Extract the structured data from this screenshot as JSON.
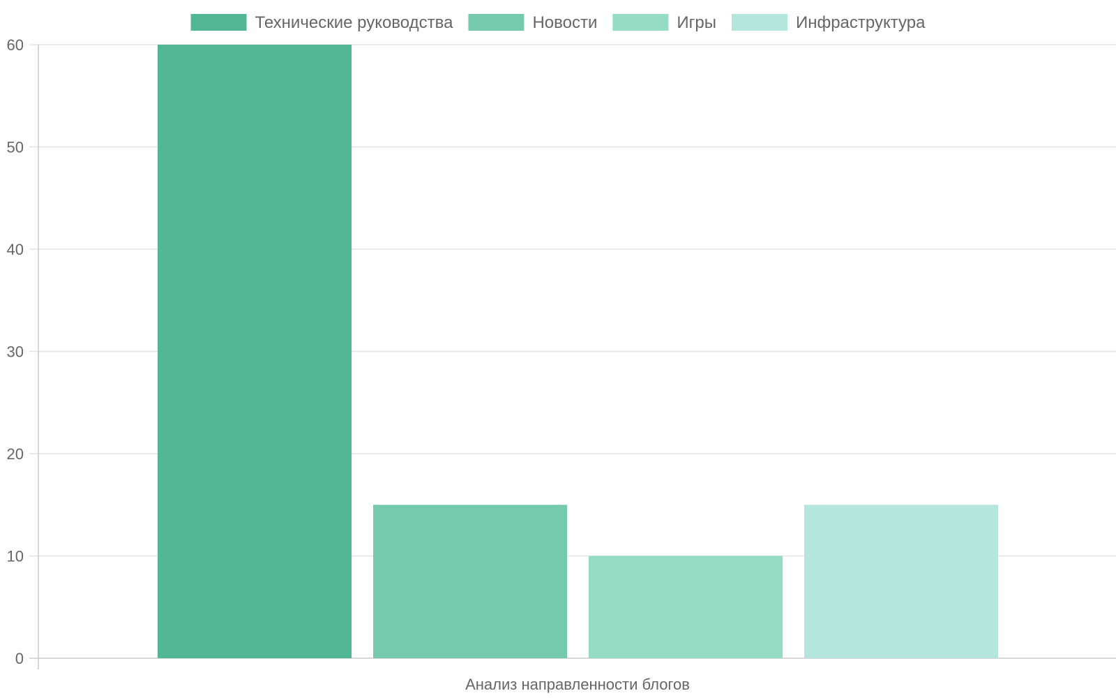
{
  "chart_data": {
    "type": "bar",
    "categories": [
      "Анализ направленности блогов"
    ],
    "series": [
      {
        "name": "Технические руководства",
        "values": [
          60
        ],
        "color": "#52b795"
      },
      {
        "name": "Новости",
        "values": [
          15
        ],
        "color": "#75caad"
      },
      {
        "name": "Игры",
        "values": [
          10
        ],
        "color": "#95dcc5"
      },
      {
        "name": "Инфраструктура",
        "values": [
          15
        ],
        "color": "#b4e6dd"
      }
    ],
    "y_ticks": [
      "0",
      "10",
      "20",
      "30",
      "40",
      "50",
      "60"
    ],
    "ylim": [
      0,
      60
    ],
    "grid": true,
    "legend_position": "top"
  }
}
